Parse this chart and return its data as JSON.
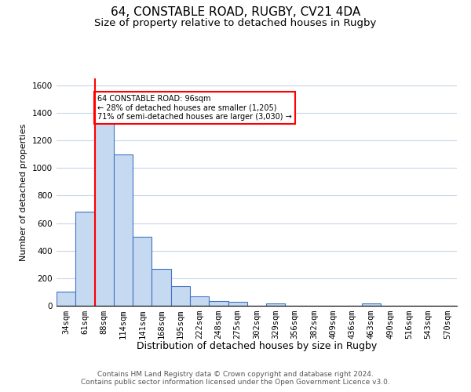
{
  "title": "64, CONSTABLE ROAD, RUGBY, CV21 4DA",
  "subtitle": "Size of property relative to detached houses in Rugby",
  "xlabel": "Distribution of detached houses by size in Rugby",
  "ylabel": "Number of detached properties",
  "footer_line1": "Contains HM Land Registry data © Crown copyright and database right 2024.",
  "footer_line2": "Contains public sector information licensed under the Open Government Licence v3.0.",
  "categories": [
    "34sqm",
    "61sqm",
    "88sqm",
    "114sqm",
    "141sqm",
    "168sqm",
    "195sqm",
    "222sqm",
    "248sqm",
    "275sqm",
    "302sqm",
    "329sqm",
    "356sqm",
    "382sqm",
    "409sqm",
    "436sqm",
    "463sqm",
    "490sqm",
    "516sqm",
    "543sqm",
    "570sqm"
  ],
  "values": [
    100,
    680,
    1350,
    1100,
    500,
    270,
    140,
    70,
    35,
    30,
    0,
    15,
    0,
    0,
    0,
    0,
    15,
    0,
    0,
    0,
    0
  ],
  "bar_color": "#c5d9f1",
  "bar_edge_color": "#4472c4",
  "red_line_index": 2,
  "annotation_text": "64 CONSTABLE ROAD: 96sqm\n← 28% of detached houses are smaller (1,205)\n71% of semi-detached houses are larger (3,030) →",
  "annotation_box_color": "white",
  "annotation_box_edge_color": "red",
  "ylim": [
    0,
    1650
  ],
  "yticks": [
    0,
    200,
    400,
    600,
    800,
    1000,
    1200,
    1400,
    1600
  ],
  "grid_color": "#c8d4e8",
  "title_fontsize": 11,
  "subtitle_fontsize": 9.5,
  "axis_label_fontsize": 8,
  "tick_fontsize": 7.5,
  "footer_fontsize": 6.5
}
